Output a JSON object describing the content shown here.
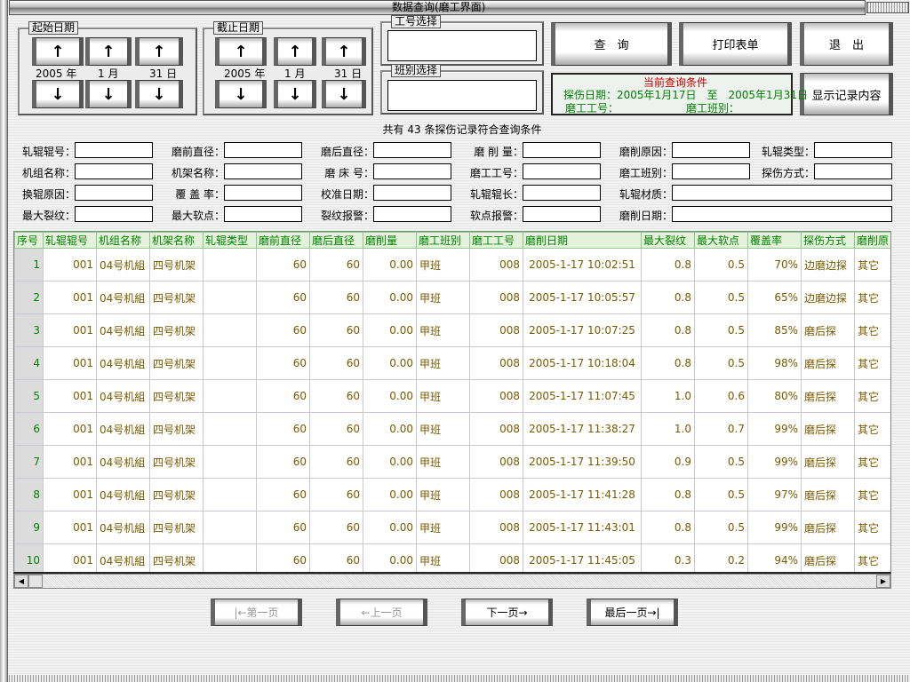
{
  "window": {
    "title": "数据查询(磨工界面)"
  },
  "start_date": {
    "label": "起始日期",
    "year": "2005",
    "year_unit": "年",
    "month": "1",
    "month_unit": "月",
    "day": "31",
    "day_unit": "日"
  },
  "end_date": {
    "label": "截止日期",
    "year": "2005",
    "year_unit": "年",
    "month": "1",
    "month_unit": "月",
    "day": "31",
    "day_unit": "日"
  },
  "arrows": {
    "up": "↑",
    "down": "↓"
  },
  "worker_select": {
    "label": "工号选择",
    "value": ""
  },
  "shift_select": {
    "label": "班别选择",
    "value": ""
  },
  "buttons": {
    "query": "查　询",
    "print": "打印表单",
    "exit": "退　出",
    "show_records": "显示记录内容"
  },
  "condition": {
    "title": "当前查询条件",
    "date_label": "探伤日期：",
    "date_from": "2005年1月17日",
    "to": "至",
    "date_to": "2005年1月31日",
    "worker_label": "磨工工号：",
    "shift_label": "磨工班别："
  },
  "summary": "共有 43 条探伤记录符合查询条件",
  "fields": [
    [
      "轧辊辊号：",
      "磨前直径：",
      "磨后直径：",
      "磨 削 量：",
      "磨削原因：",
      "轧辊类型："
    ],
    [
      "机组名称：",
      "机架名称：",
      "磨 床 号：",
      "磨工工号：",
      "磨工班别：",
      "探伤方式："
    ],
    [
      "换辊原因：",
      "覆 盖 率：",
      "校准日期：",
      "轧辊辊长：",
      "轧辊材质："
    ],
    [
      "最大裂纹：",
      "最大软点：",
      "裂纹报警：",
      "软点报警：",
      "磨削日期："
    ]
  ],
  "table": {
    "columns": [
      "序号",
      "轧辊辊号",
      "机组名称",
      "机架名称",
      "轧辊类型",
      "磨前直径",
      "磨后直径",
      "磨削量",
      "磨工班别",
      "磨工工号",
      "磨削日期",
      "最大裂纹",
      "最大软点",
      "覆盖率",
      "探伤方式",
      "磨削原"
    ],
    "rows": [
      [
        "1",
        "001",
        "04号机組",
        "四号机架",
        "",
        "60",
        "60",
        "0.00",
        "甲班",
        "008",
        "2005-1-17 10:02:51",
        "0.8",
        "0.5",
        "70%",
        "边磨边探",
        "其它"
      ],
      [
        "2",
        "001",
        "04号机組",
        "四号机架",
        "",
        "60",
        "60",
        "0.00",
        "甲班",
        "008",
        "2005-1-17 10:05:57",
        "0.8",
        "0.5",
        "65%",
        "边磨边探",
        "其它"
      ],
      [
        "3",
        "001",
        "04号机組",
        "四号机架",
        "",
        "60",
        "60",
        "0.00",
        "甲班",
        "008",
        "2005-1-17 10:07:25",
        "0.8",
        "0.5",
        "85%",
        "磨后探",
        "其它"
      ],
      [
        "4",
        "001",
        "04号机組",
        "四号机架",
        "",
        "60",
        "60",
        "0.00",
        "甲班",
        "008",
        "2005-1-17 10:18:04",
        "0.8",
        "0.5",
        "98%",
        "磨后探",
        "其它"
      ],
      [
        "5",
        "001",
        "04号机組",
        "四号机架",
        "",
        "60",
        "60",
        "0.00",
        "甲班",
        "008",
        "2005-1-17 11:07:45",
        "1.0",
        "0.6",
        "80%",
        "磨后探",
        "其它"
      ],
      [
        "6",
        "001",
        "04号机組",
        "四号机架",
        "",
        "60",
        "60",
        "0.00",
        "甲班",
        "008",
        "2005-1-17 11:38:27",
        "1.0",
        "0.7",
        "99%",
        "磨后探",
        "其它"
      ],
      [
        "7",
        "001",
        "04号机組",
        "四号机架",
        "",
        "60",
        "60",
        "0.00",
        "甲班",
        "008",
        "2005-1-17 11:39:50",
        "0.9",
        "0.5",
        "99%",
        "磨后探",
        "其它"
      ],
      [
        "8",
        "001",
        "04号机組",
        "四号机架",
        "",
        "60",
        "60",
        "0.00",
        "甲班",
        "008",
        "2005-1-17 11:41:28",
        "0.8",
        "0.5",
        "97%",
        "磨后探",
        "其它"
      ],
      [
        "9",
        "001",
        "04号机組",
        "四号机架",
        "",
        "60",
        "60",
        "0.00",
        "甲班",
        "008",
        "2005-1-17 11:43:01",
        "0.8",
        "0.5",
        "99%",
        "磨后探",
        "其它"
      ],
      [
        "10",
        "001",
        "04号机組",
        "四号机架",
        "",
        "60",
        "60",
        "0.00",
        "甲班",
        "008",
        "2005-1-17 11:45:05",
        "0.3",
        "0.2",
        "94%",
        "磨后探",
        "其它"
      ]
    ]
  },
  "pagination": {
    "first": "|←第一页",
    "prev": "←上一页",
    "next": "下一页→",
    "last": "最后一页→|"
  },
  "colors": {
    "header_text": "#008000",
    "cell_text": "#7a5a00",
    "condition_title": "#c00000"
  }
}
